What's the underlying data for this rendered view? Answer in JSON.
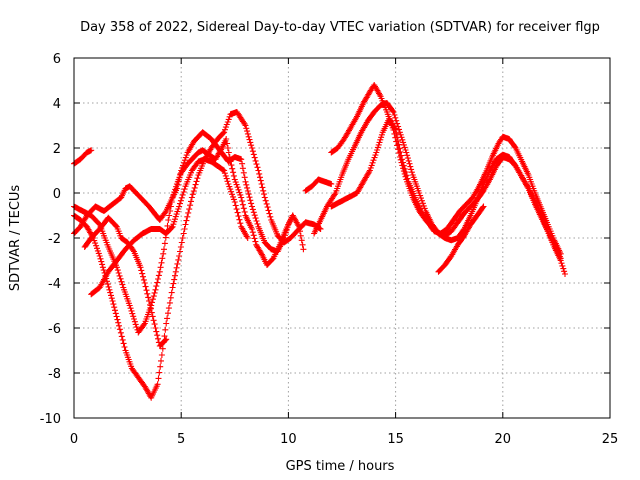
{
  "chart_data": {
    "type": "scatter",
    "title": "Day 358 of 2022, Sidereal Day-to-day VTEC variation (SDTVAR) for receiver flgp",
    "xlabel": "GPS time / hours",
    "ylabel": "SDTVAR / TECUs",
    "xlim": [
      0,
      25
    ],
    "ylim": [
      -10,
      6
    ],
    "xticks": [
      0,
      5,
      10,
      15,
      20,
      25
    ],
    "yticks": [
      -10,
      -8,
      -6,
      -4,
      -2,
      0,
      2,
      4,
      6
    ],
    "grid": true,
    "marker": "+",
    "color": "#ff0000",
    "series": [
      {
        "name": "trace-1",
        "x": [
          0.0,
          0.3,
          0.6,
          0.8
        ],
        "y": [
          1.3,
          1.5,
          1.8,
          1.9
        ]
      },
      {
        "name": "trace-2",
        "x": [
          0.0,
          0.3,
          0.6,
          1.0,
          1.4,
          1.8,
          2.2,
          2.4,
          2.6,
          3.0,
          3.5,
          4.0,
          4.3,
          4.5,
          4.8,
          5.0,
          5.3,
          5.6,
          6.0,
          6.4,
          6.8,
          7.2,
          7.5,
          7.8,
          8.0,
          8.3,
          8.6,
          8.9,
          9.2,
          9.5,
          9.8,
          10.0,
          10.2
        ],
        "y": [
          -1.8,
          -1.5,
          -1.0,
          -0.6,
          -0.8,
          -0.5,
          -0.2,
          0.2,
          0.3,
          -0.1,
          -0.6,
          -1.2,
          -0.8,
          -0.4,
          0.2,
          1.0,
          1.8,
          2.3,
          2.7,
          2.4,
          1.9,
          1.4,
          1.6,
          1.5,
          0.5,
          -0.6,
          -1.5,
          -2.2,
          -2.5,
          -2.6,
          -2.0,
          -1.4,
          -1.0
        ]
      },
      {
        "name": "trace-3",
        "x": [
          0.0,
          0.4,
          0.8,
          1.2,
          1.6,
          2.0,
          2.3,
          2.6,
          2.8,
          3.0,
          3.3,
          3.6,
          3.8,
          4.0,
          4.2,
          4.4,
          4.6,
          4.8,
          5.0,
          5.3,
          5.6,
          5.8,
          6.0,
          6.3,
          6.6,
          6.9,
          7.1,
          7.3,
          7.5,
          7.8,
          8.0,
          8.3,
          8.5,
          8.8,
          9.0,
          9.3,
          9.6,
          9.9,
          10.2,
          10.5,
          10.7
        ],
        "y": [
          -0.6,
          -0.8,
          -1.0,
          -1.4,
          -2.4,
          -3.3,
          -4.2,
          -5.0,
          -5.6,
          -6.2,
          -5.8,
          -5.0,
          -4.3,
          -3.5,
          -2.5,
          -1.2,
          -0.2,
          0.4,
          0.9,
          1.3,
          1.6,
          1.8,
          1.9,
          1.7,
          1.5,
          2.0,
          2.4,
          1.4,
          0.6,
          -0.2,
          -1.0,
          -1.6,
          -2.3,
          -2.8,
          -3.2,
          -2.9,
          -2.3,
          -1.6,
          -1.0,
          -1.5,
          -2.5
        ]
      },
      {
        "name": "trace-4",
        "x": [
          0.0,
          0.3,
          0.6,
          0.9,
          1.2,
          1.5,
          1.8,
          2.1,
          2.4,
          2.7,
          3.0,
          3.3,
          3.6,
          3.9,
          4.1,
          4.3,
          4.6,
          4.9,
          5.2,
          5.5,
          5.8,
          6.1,
          6.4,
          6.7,
          7.0,
          7.3,
          7.6,
          8.0,
          8.3,
          8.6,
          8.9,
          9.2,
          9.5,
          9.8,
          10.1,
          10.4,
          10.8,
          11.2,
          11.5
        ],
        "y": [
          -1.0,
          -1.2,
          -1.5,
          -2.0,
          -2.8,
          -3.8,
          -4.8,
          -5.9,
          -7.0,
          -7.8,
          -8.2,
          -8.6,
          -9.1,
          -8.5,
          -7.2,
          -5.8,
          -4.2,
          -2.8,
          -1.4,
          -0.2,
          0.8,
          1.5,
          2.0,
          2.4,
          2.7,
          3.5,
          3.6,
          3.0,
          2.0,
          1.0,
          -0.2,
          -1.2,
          -1.9,
          -2.2,
          -2.0,
          -1.7,
          -1.3,
          -1.4,
          -1.6
        ]
      },
      {
        "name": "trace-5",
        "x": [
          0.8,
          1.2,
          1.6,
          2.0,
          2.4,
          2.8,
          3.2,
          3.6,
          4.0,
          4.3,
          4.6,
          4.9,
          5.2,
          5.5,
          5.8,
          6.1,
          6.4,
          6.7,
          7.0,
          7.2,
          7.5,
          7.8,
          8.1
        ],
        "y": [
          -4.5,
          -4.2,
          -3.5,
          -3.0,
          -2.5,
          -2.1,
          -1.8,
          -1.6,
          -1.6,
          -1.8,
          -1.5,
          -0.6,
          0.3,
          1.0,
          1.4,
          1.5,
          1.4,
          1.2,
          1.0,
          0.4,
          -0.4,
          -1.5,
          -2.0
        ]
      },
      {
        "name": "trace-6",
        "x": [
          0.5,
          0.8,
          1.2,
          1.6,
          2.0,
          2.2,
          2.5,
          2.8,
          3.1,
          3.3,
          3.5,
          3.8,
          4.0,
          4.3
        ],
        "y": [
          -2.4,
          -2.0,
          -1.6,
          -1.1,
          -1.5,
          -2.0,
          -2.2,
          -2.6,
          -3.3,
          -4.0,
          -4.8,
          -6.0,
          -6.8,
          -6.5
        ]
      },
      {
        "name": "trace-7",
        "x": [
          12.0,
          12.3,
          12.6,
          12.9,
          13.2,
          13.5,
          13.8,
          14.0,
          14.3,
          14.6,
          14.9,
          15.2,
          15.5,
          15.8,
          16.1,
          16.4,
          16.7,
          17.0,
          17.3,
          17.6,
          17.9,
          18.2,
          18.5,
          18.8,
          19.1,
          19.4,
          19.7,
          20.0,
          20.3,
          20.6,
          20.9,
          21.2,
          21.5,
          21.8,
          22.1,
          22.4,
          22.7,
          22.9
        ],
        "y": [
          1.8,
          2.0,
          2.4,
          2.9,
          3.4,
          4.0,
          4.5,
          4.8,
          4.3,
          3.6,
          2.8,
          1.6,
          0.6,
          -0.2,
          -0.8,
          -1.2,
          -1.5,
          -1.8,
          -2.0,
          -2.1,
          -2.0,
          -1.6,
          -1.0,
          -0.3,
          0.4,
          1.0,
          1.5,
          1.7,
          1.6,
          1.2,
          0.7,
          0.2,
          -0.4,
          -1.0,
          -1.7,
          -2.4,
          -3.0,
          -3.6
        ]
      },
      {
        "name": "trace-8",
        "x": [
          11.2,
          11.5,
          11.8,
          12.2,
          12.5,
          12.8,
          13.1,
          13.4,
          13.7,
          14.0,
          14.3,
          14.6,
          14.9,
          15.2,
          15.5,
          15.8,
          16.1,
          16.4,
          16.7,
          17.0,
          17.3,
          17.6,
          17.9,
          18.2,
          18.5,
          18.8,
          19.1,
          19.4,
          19.7,
          20.0,
          20.3,
          20.6,
          20.9,
          21.2,
          21.5,
          21.8,
          22.1,
          22.4,
          22.7
        ],
        "y": [
          -1.8,
          -1.2,
          -0.6,
          0.0,
          0.8,
          1.5,
          2.1,
          2.7,
          3.2,
          3.6,
          3.9,
          4.0,
          3.6,
          2.7,
          1.8,
          0.8,
          0.0,
          -0.8,
          -1.4,
          -1.8,
          -1.9,
          -1.7,
          -1.3,
          -0.9,
          -0.6,
          -0.3,
          0.1,
          0.6,
          1.2,
          1.6,
          1.5,
          1.2,
          0.7,
          0.2,
          -0.5,
          -1.1,
          -1.7,
          -2.3,
          -2.9
        ]
      },
      {
        "name": "trace-9",
        "x": [
          12.0,
          12.4,
          12.8,
          13.2,
          13.5,
          13.8,
          14.1,
          14.4,
          14.7,
          15.0,
          15.3,
          15.6,
          15.9,
          16.2,
          16.5,
          16.8,
          17.1,
          17.4,
          17.7,
          18.0,
          18.3,
          18.6,
          18.9,
          19.2,
          19.5,
          19.8,
          20.0,
          20.3,
          20.6,
          20.9,
          21.2,
          21.5,
          21.8,
          22.1,
          22.4,
          22.7
        ],
        "y": [
          -0.6,
          -0.4,
          -0.2,
          0.0,
          0.5,
          1.0,
          1.8,
          2.7,
          3.3,
          2.8,
          1.5,
          0.5,
          -0.2,
          -0.8,
          -1.3,
          -1.7,
          -1.8,
          -1.6,
          -1.2,
          -0.8,
          -0.5,
          -0.2,
          0.3,
          0.9,
          1.6,
          2.2,
          2.5,
          2.4,
          2.0,
          1.4,
          0.8,
          0.0,
          -0.7,
          -1.4,
          -2.1,
          -2.7
        ]
      },
      {
        "name": "trace-10",
        "x": [
          10.8,
          11.1,
          11.4,
          11.7,
          12.0
        ],
        "y": [
          0.1,
          0.3,
          0.6,
          0.5,
          0.4
        ]
      },
      {
        "name": "trace-11",
        "x": [
          17.0,
          17.3,
          17.6,
          17.9,
          18.2,
          18.5,
          18.8,
          19.1
        ],
        "y": [
          -3.5,
          -3.2,
          -2.8,
          -2.3,
          -1.9,
          -1.4,
          -1.0,
          -0.6
        ]
      }
    ]
  }
}
